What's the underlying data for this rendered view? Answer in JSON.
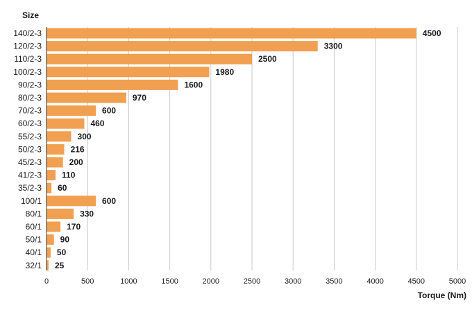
{
  "chart_data": {
    "type": "bar",
    "orientation": "horizontal",
    "ylabel": "Size",
    "xlabel": "Torque (Nm)",
    "xlim": [
      0,
      5000
    ],
    "xticks": [
      0,
      500,
      1000,
      1500,
      2000,
      2500,
      3000,
      3500,
      4000,
      4500,
      5000
    ],
    "grid": true,
    "bar_color": "#f0a050",
    "categories": [
      "140/2-3",
      "120/2-3",
      "110/2-3",
      "100/2-3",
      "90/2-3",
      "80/2-3",
      "70/2-3",
      "60/2-3",
      "55/2-3",
      "50/2-3",
      "45/2-3",
      "41/2-3",
      "35/2-3",
      "100/1",
      "80/1",
      "60/1",
      "50/1",
      "40/1",
      "32/1"
    ],
    "values": [
      4500,
      3300,
      2500,
      1980,
      1600,
      970,
      600,
      460,
      300,
      216,
      200,
      110,
      60,
      600,
      330,
      170,
      90,
      50,
      25
    ]
  }
}
